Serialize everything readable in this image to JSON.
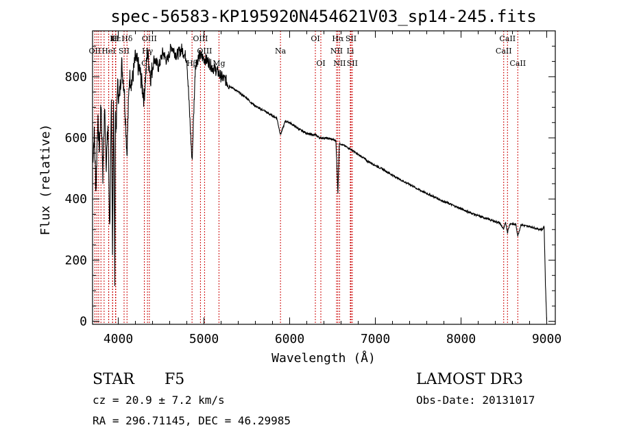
{
  "chart_data": {
    "type": "line",
    "title": "spec-56583-KP195920N454621V03_sp14-245.fits",
    "xlabel": "Wavelength (Å)",
    "ylabel": "Flux (relative)",
    "xlim": [
      3700,
      9100
    ],
    "ylim": [
      -10,
      950
    ],
    "xticks": [
      4000,
      5000,
      6000,
      7000,
      8000,
      9000
    ],
    "yticks": [
      0,
      200,
      400,
      600,
      800
    ],
    "series": [
      {
        "name": "flux",
        "x": [
          3700,
          3720,
          3740,
          3760,
          3780,
          3800,
          3820,
          3840,
          3860,
          3880,
          3900,
          3920,
          3933,
          3945,
          3960,
          3968,
          3975,
          3990,
          4010,
          4040,
          4070,
          4101,
          4130,
          4160,
          4200,
          4250,
          4300,
          4340,
          4380,
          4420,
          4470,
          4520,
          4570,
          4620,
          4680,
          4740,
          4800,
          4861,
          4900,
          4950,
          5000,
          5050,
          5100,
          5150,
          5200,
          5250,
          5300,
          5350,
          5400,
          5450,
          5500,
          5550,
          5600,
          5650,
          5700,
          5750,
          5800,
          5850,
          5893,
          5950,
          6000,
          6050,
          6100,
          6150,
          6200,
          6250,
          6300,
          6350,
          6400,
          6450,
          6500,
          6540,
          6563,
          6580,
          6600,
          6650,
          6700,
          6750,
          6800,
          6850,
          6900,
          6950,
          7000,
          7100,
          7200,
          7300,
          7400,
          7500,
          7600,
          7700,
          7800,
          7900,
          8000,
          8100,
          8200,
          8300,
          8400,
          8450,
          8498,
          8520,
          8542,
          8570,
          8600,
          8640,
          8662,
          8700,
          8750,
          8800,
          8850,
          8900,
          8950,
          8970,
          8985,
          9000
        ],
        "values": [
          520,
          610,
          430,
          660,
          560,
          720,
          480,
          700,
          520,
          640,
          300,
          700,
          250,
          730,
          150,
          690,
          600,
          780,
          720,
          840,
          760,
          550,
          800,
          780,
          860,
          820,
          730,
          880,
          800,
          860,
          830,
          880,
          850,
          900,
          870,
          890,
          860,
          520,
          840,
          870,
          860,
          850,
          830,
          820,
          800,
          790,
          770,
          760,
          750,
          740,
          730,
          715,
          705,
          695,
          690,
          680,
          672,
          665,
          610,
          655,
          650,
          640,
          630,
          622,
          615,
          610,
          610,
          600,
          600,
          598,
          595,
          590,
          420,
          582,
          580,
          572,
          565,
          555,
          545,
          537,
          525,
          518,
          510,
          495,
          478,
          462,
          448,
          432,
          418,
          405,
          392,
          380,
          368,
          356,
          345,
          336,
          326,
          322,
          300,
          325,
          290,
          320,
          318,
          316,
          280,
          316,
          312,
          310,
          306,
          302,
          300,
          310,
          120,
          0
        ]
      }
    ],
    "line_markers": [
      {
        "label": "Hδ",
        "wl": 4102,
        "row": 0
      },
      {
        "label": "K",
        "wl": 3934,
        "row": 0
      },
      {
        "label": "H",
        "wl": 3968,
        "row": 0
      },
      {
        "label": "Hε",
        "wl": 3970,
        "row": 0
      },
      {
        "label": "OII",
        "wl": 3727,
        "row": 1
      },
      {
        "label": "HeI",
        "wl": 3888,
        "row": 1
      },
      {
        "label": "SII",
        "wl": 4068,
        "row": 1
      },
      {
        "label": "OIII",
        "wl": 4363,
        "row": 0
      },
      {
        "label": "Hγ",
        "wl": 4341,
        "row": 1
      },
      {
        "label": "G",
        "wl": 4304,
        "row": 2
      },
      {
        "label": "OIII",
        "wl": 4959,
        "row": 0
      },
      {
        "label": "OIII",
        "wl": 5007,
        "row": 1
      },
      {
        "label": "Hβ",
        "wl": 4861,
        "row": 2
      },
      {
        "label": "Mg",
        "wl": 5175,
        "row": 2
      },
      {
        "label": "Na",
        "wl": 5893,
        "row": 1
      },
      {
        "label": "OI",
        "wl": 6300,
        "row": 0
      },
      {
        "label": "OI",
        "wl": 6364,
        "row": 2
      },
      {
        "label": "Hα",
        "wl": 6563,
        "row": 0
      },
      {
        "label": "SII",
        "wl": 6716,
        "row": 0
      },
      {
        "label": "NII",
        "wl": 6548,
        "row": 1
      },
      {
        "label": "Li",
        "wl": 6708,
        "row": 1
      },
      {
        "label": "NII",
        "wl": 6583,
        "row": 2
      },
      {
        "label": "SII",
        "wl": 6731,
        "row": 2
      },
      {
        "label": "CaII",
        "wl": 8542,
        "row": 0
      },
      {
        "label": "CaII",
        "wl": 8498,
        "row": 1
      },
      {
        "label": "CaII",
        "wl": 8662,
        "row": 2
      }
    ],
    "extra_line_wavelengths": [
      3750,
      3771,
      3798,
      3835,
      3889,
      3934,
      3970
    ]
  },
  "labels": {
    "object_class": "STAR",
    "subclass": "F5",
    "survey": "LAMOST DR3",
    "cz": "cz = 20.9 ± 7.2 km/s",
    "obs_date": "Obs-Date: 20131017",
    "coords": "RA = 296.71145, DEC =  46.29985"
  },
  "colors": {
    "spectrum": "#000000",
    "marker": "#cc0000",
    "background": "#ffffff"
  }
}
